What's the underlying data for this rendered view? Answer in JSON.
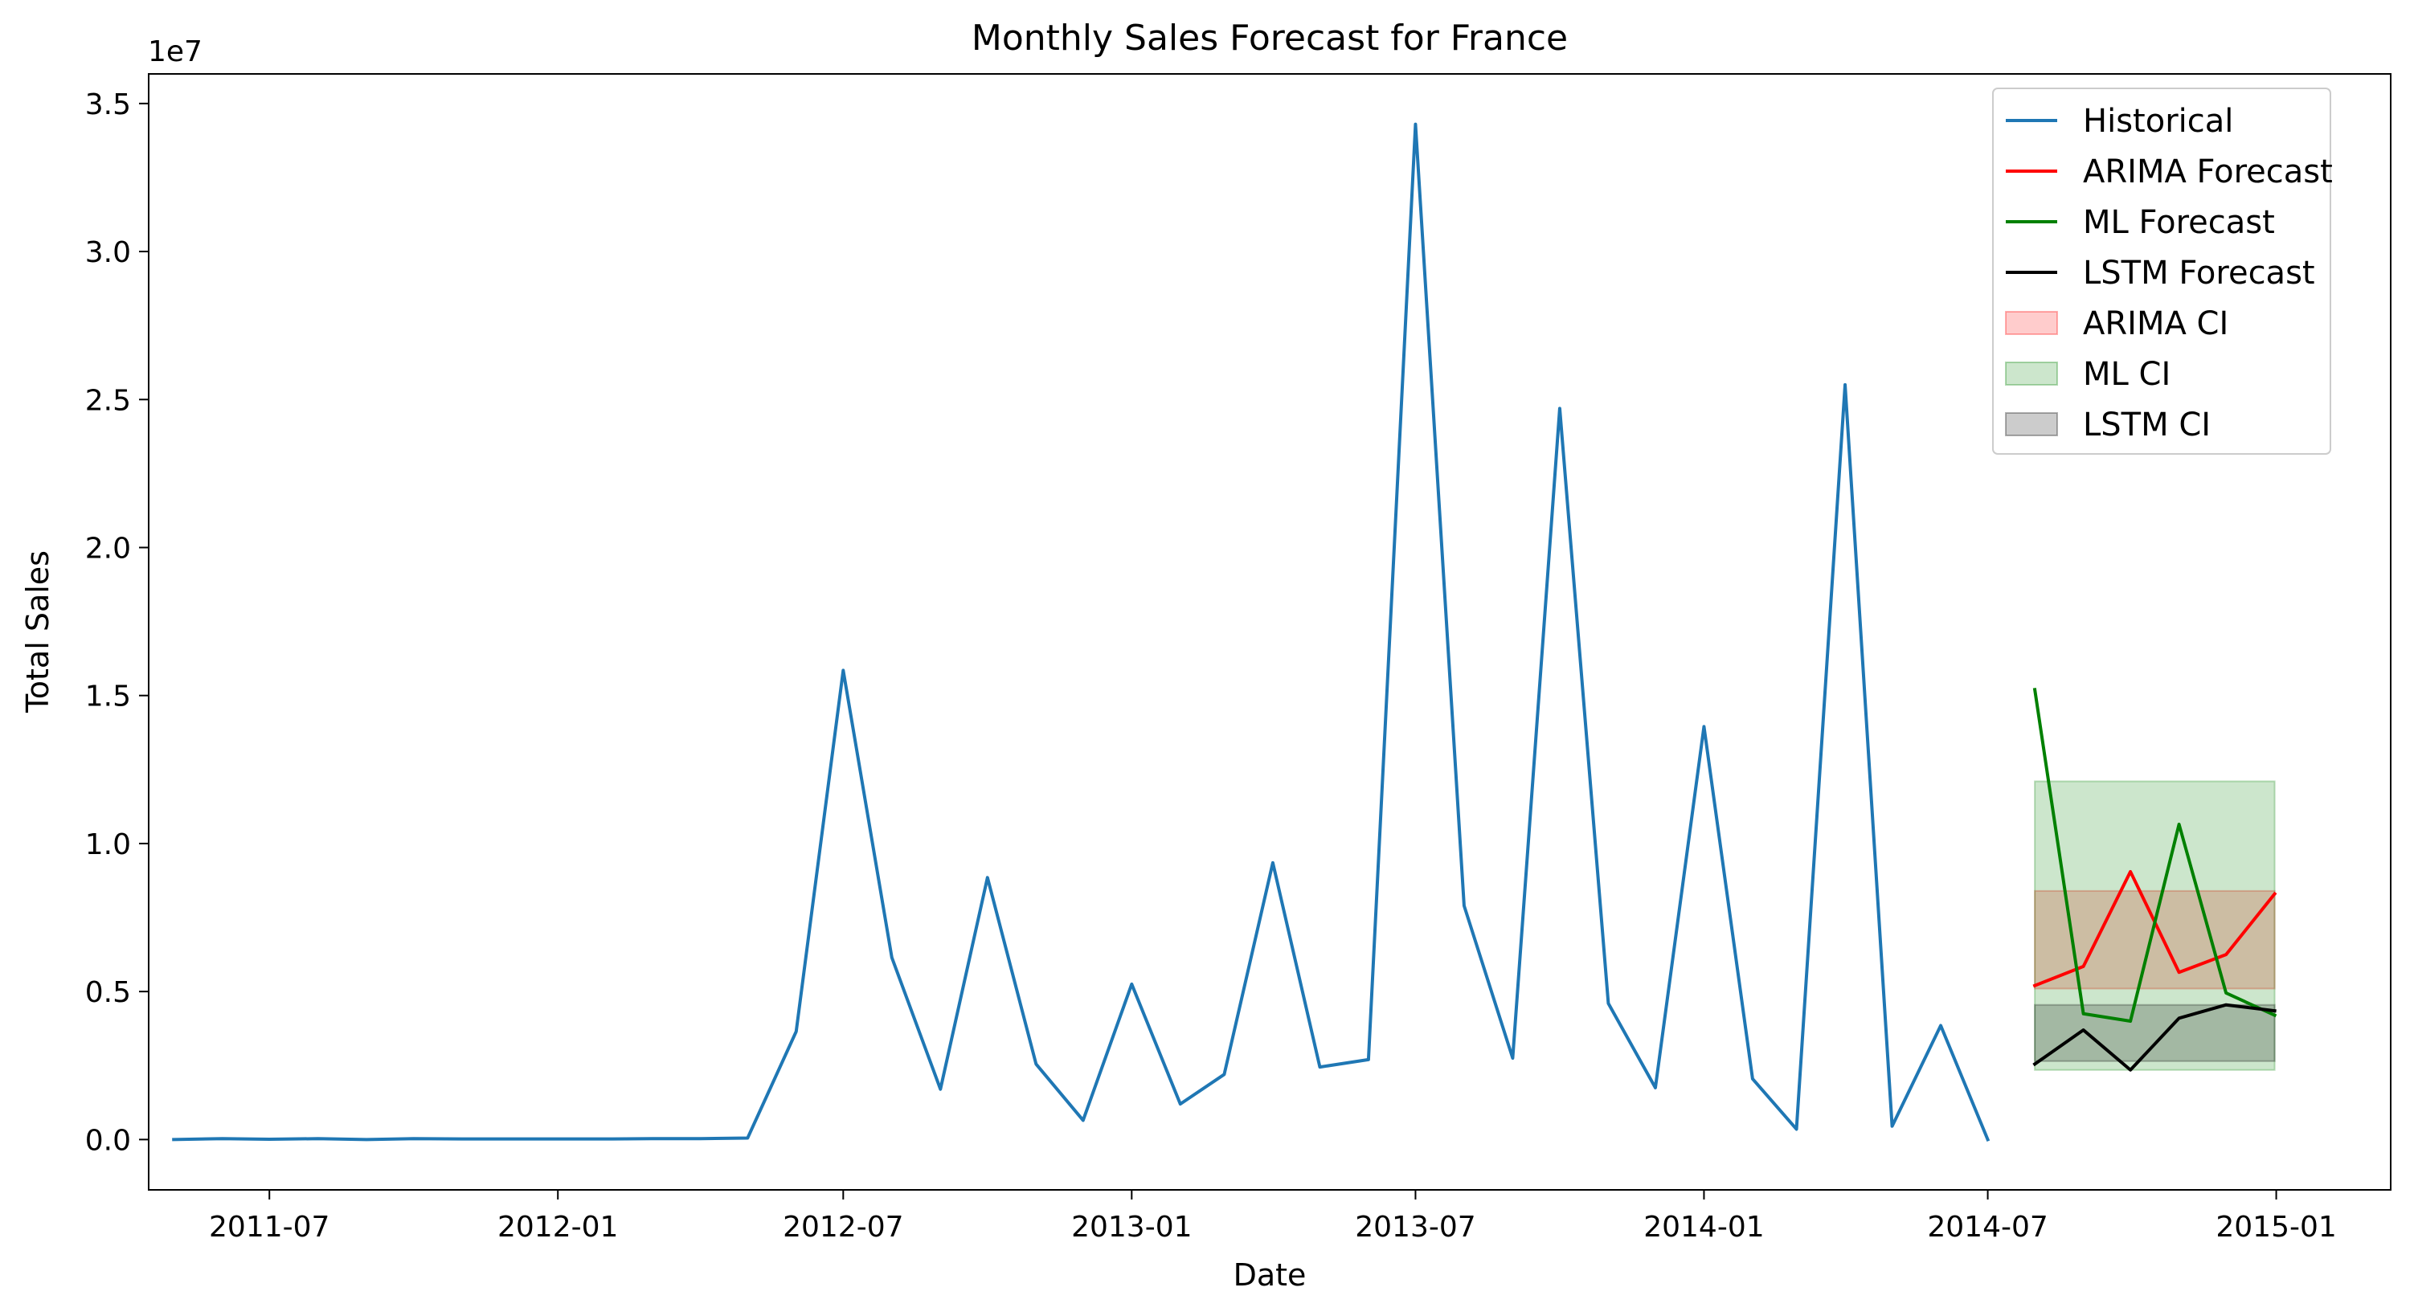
{
  "chart_data": {
    "type": "line",
    "title": "Monthly Sales Forecast for France",
    "xlabel": "Date",
    "ylabel": "Total Sales",
    "y_multiplier_label": "1e7",
    "y_unit": 10000000,
    "xlim": [
      "2011-04-15",
      "2015-03-15"
    ],
    "ylim": [
      -1700000,
      36000000
    ],
    "x_ticks": [
      "2011-07",
      "2012-01",
      "2012-07",
      "2013-01",
      "2013-07",
      "2014-01",
      "2014-07",
      "2015-01"
    ],
    "y_ticks": [
      0.0,
      0.5,
      1.0,
      1.5,
      2.0,
      2.5,
      3.0,
      3.5
    ],
    "legend_position": "top-right",
    "series": [
      {
        "name": "Historical",
        "color": "#1f77b4",
        "x": [
          "2011-05",
          "2011-06",
          "2011-07",
          "2011-08",
          "2011-09",
          "2011-10",
          "2011-11",
          "2011-12",
          "2012-01",
          "2012-02",
          "2012-03",
          "2012-04",
          "2012-05",
          "2012-06",
          "2012-07",
          "2012-08",
          "2012-09",
          "2012-10",
          "2012-11",
          "2012-12",
          "2013-01",
          "2013-02",
          "2013-03",
          "2013-04",
          "2013-05",
          "2013-06",
          "2013-07",
          "2013-08",
          "2013-09",
          "2013-10",
          "2013-11",
          "2013-12",
          "2014-01",
          "2014-02",
          "2014-03",
          "2014-04",
          "2014-05",
          "2014-06",
          "2014-07"
        ],
        "y": [
          0,
          30000,
          10000,
          30000,
          0,
          30000,
          20000,
          20000,
          20000,
          20000,
          30000,
          30000,
          50000,
          3650000,
          15850000,
          6150000,
          1700000,
          8850000,
          2550000,
          650000,
          5250000,
          1200000,
          2200000,
          9350000,
          2450000,
          2700000,
          34300000,
          7900000,
          2750000,
          24700000,
          4600000,
          1750000,
          13950000,
          2050000,
          350000,
          25500000,
          450000,
          3850000,
          0
        ]
      },
      {
        "name": "ARIMA Forecast",
        "color": "#ff0000",
        "x": [
          "2014-07-31",
          "2014-08-31",
          "2014-09-30",
          "2014-10-31",
          "2014-11-30",
          "2014-12-31"
        ],
        "y": [
          5200000,
          5850000,
          9050000,
          5650000,
          6250000,
          8300000
        ]
      },
      {
        "name": "ML Forecast",
        "color": "#008000",
        "x": [
          "2014-07-31",
          "2014-08-31",
          "2014-09-30",
          "2014-10-31",
          "2014-11-30",
          "2014-12-31"
        ],
        "y": [
          15200000,
          4250000,
          4000000,
          10650000,
          4950000,
          4200000
        ]
      },
      {
        "name": "LSTM Forecast",
        "color": "#000000",
        "x": [
          "2014-07-31",
          "2014-08-31",
          "2014-09-30",
          "2014-10-31",
          "2014-11-30",
          "2014-12-31"
        ],
        "y": [
          2550000,
          3700000,
          2350000,
          4100000,
          4550000,
          4350000
        ]
      }
    ],
    "bands": [
      {
        "name": "ARIMA CI",
        "color": "#ff0000",
        "x": [
          "2014-07-31",
          "2014-12-31"
        ],
        "lower": [
          5100000,
          5100000
        ],
        "upper": [
          8400000,
          8400000
        ]
      },
      {
        "name": "ML CI",
        "color": "#008000",
        "x": [
          "2014-07-31",
          "2014-12-31"
        ],
        "lower": [
          2350000,
          2350000
        ],
        "upper": [
          12100000,
          12100000
        ]
      },
      {
        "name": "LSTM CI",
        "color": "#000000",
        "x": [
          "2014-07-31",
          "2014-12-31"
        ],
        "lower": [
          2650000,
          2650000
        ],
        "upper": [
          4550000,
          4550000
        ]
      }
    ]
  }
}
